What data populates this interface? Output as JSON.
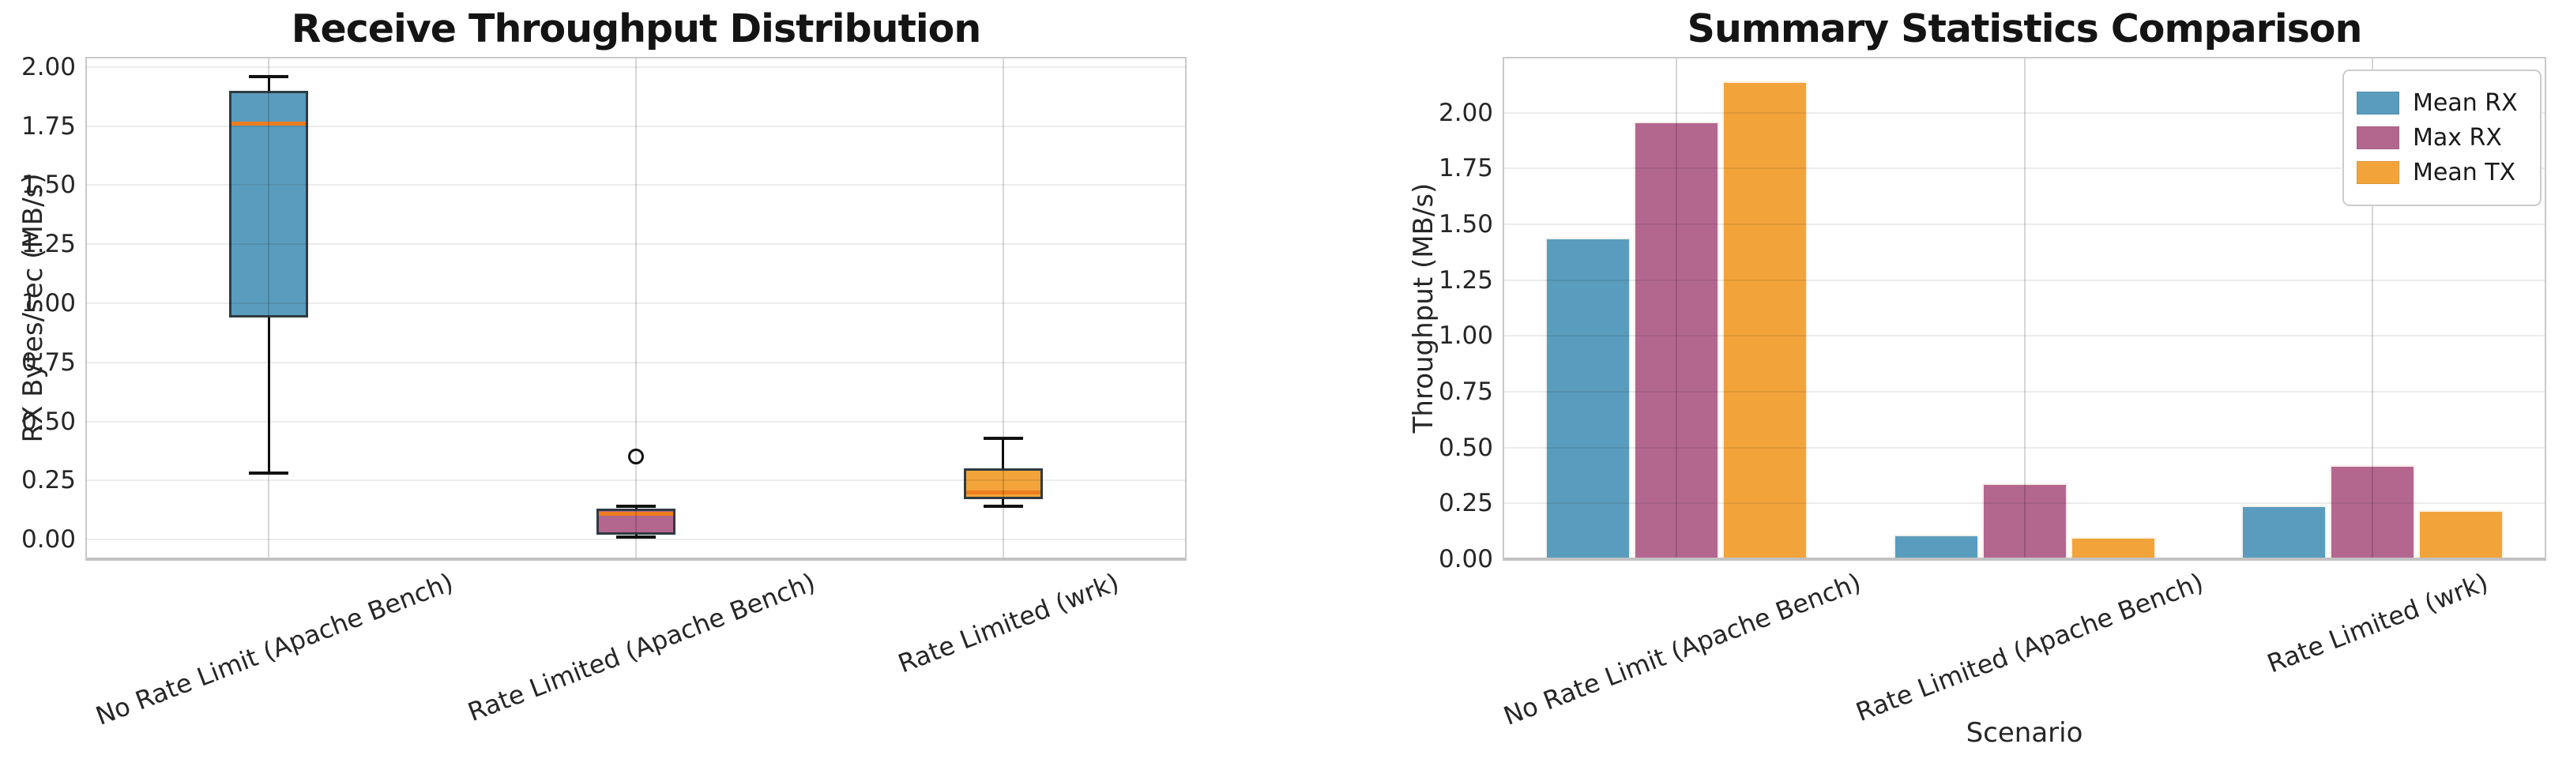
{
  "chart_data": [
    {
      "type": "box",
      "title": "Receive Throughput Distribution",
      "ylabel": "RX Bytes/sec (MB/s)",
      "xlabel": "",
      "categories": [
        "No Rate Limit (Apache Bench)",
        "Rate Limited (Apache Bench)",
        "Rate Limited (wrk)"
      ],
      "ylim": [
        -0.083,
        2.043
      ],
      "yticks": [
        0.0,
        0.25,
        0.5,
        0.75,
        1.0,
        1.25,
        1.5,
        1.75,
        2.0
      ],
      "grid": true,
      "median_color": "#EE7D1E",
      "boxes": [
        {
          "category": "No Rate Limit (Apache Bench)",
          "whisker_low": 0.28,
          "q1": 0.94,
          "median": 1.76,
          "q3": 1.9,
          "whisker_high": 1.96,
          "outliers": [],
          "fill_color": "#5A9CBD"
        },
        {
          "category": "Rate Limited (Apache Bench)",
          "whisker_low": 0.01,
          "q1": 0.02,
          "median": 0.11,
          "q3": 0.13,
          "whisker_high": 0.14,
          "outliers": [
            0.35
          ],
          "fill_color": "#B3678F"
        },
        {
          "category": "Rate Limited (wrk)",
          "whisker_low": 0.14,
          "q1": 0.17,
          "median": 0.2,
          "q3": 0.3,
          "whisker_high": 0.43,
          "outliers": [],
          "fill_color": "#F2A43B"
        }
      ]
    },
    {
      "type": "bar",
      "title": "Summary Statistics Comparison",
      "ylabel": "Throughput (MB/s)",
      "xlabel": "Scenario",
      "categories": [
        "No Rate Limit (Apache Bench)",
        "Rate Limited (Apache Bench)",
        "Rate Limited (wrk)"
      ],
      "ylim": [
        0,
        2.25
      ],
      "yticks": [
        0.0,
        0.25,
        0.5,
        0.75,
        1.0,
        1.25,
        1.5,
        1.75,
        2.0
      ],
      "grid": true,
      "legend": {
        "position": "upper right",
        "entries": [
          "Mean RX",
          "Max RX",
          "Mean TX"
        ]
      },
      "series": [
        {
          "name": "Mean RX",
          "color": "#5A9CBD",
          "values": [
            1.44,
            0.11,
            0.24
          ]
        },
        {
          "name": "Max RX",
          "color": "#B3678F",
          "values": [
            1.96,
            0.34,
            0.42
          ]
        },
        {
          "name": "Mean TX",
          "color": "#F2A43B",
          "values": [
            2.14,
            0.1,
            0.22
          ]
        }
      ]
    }
  ]
}
